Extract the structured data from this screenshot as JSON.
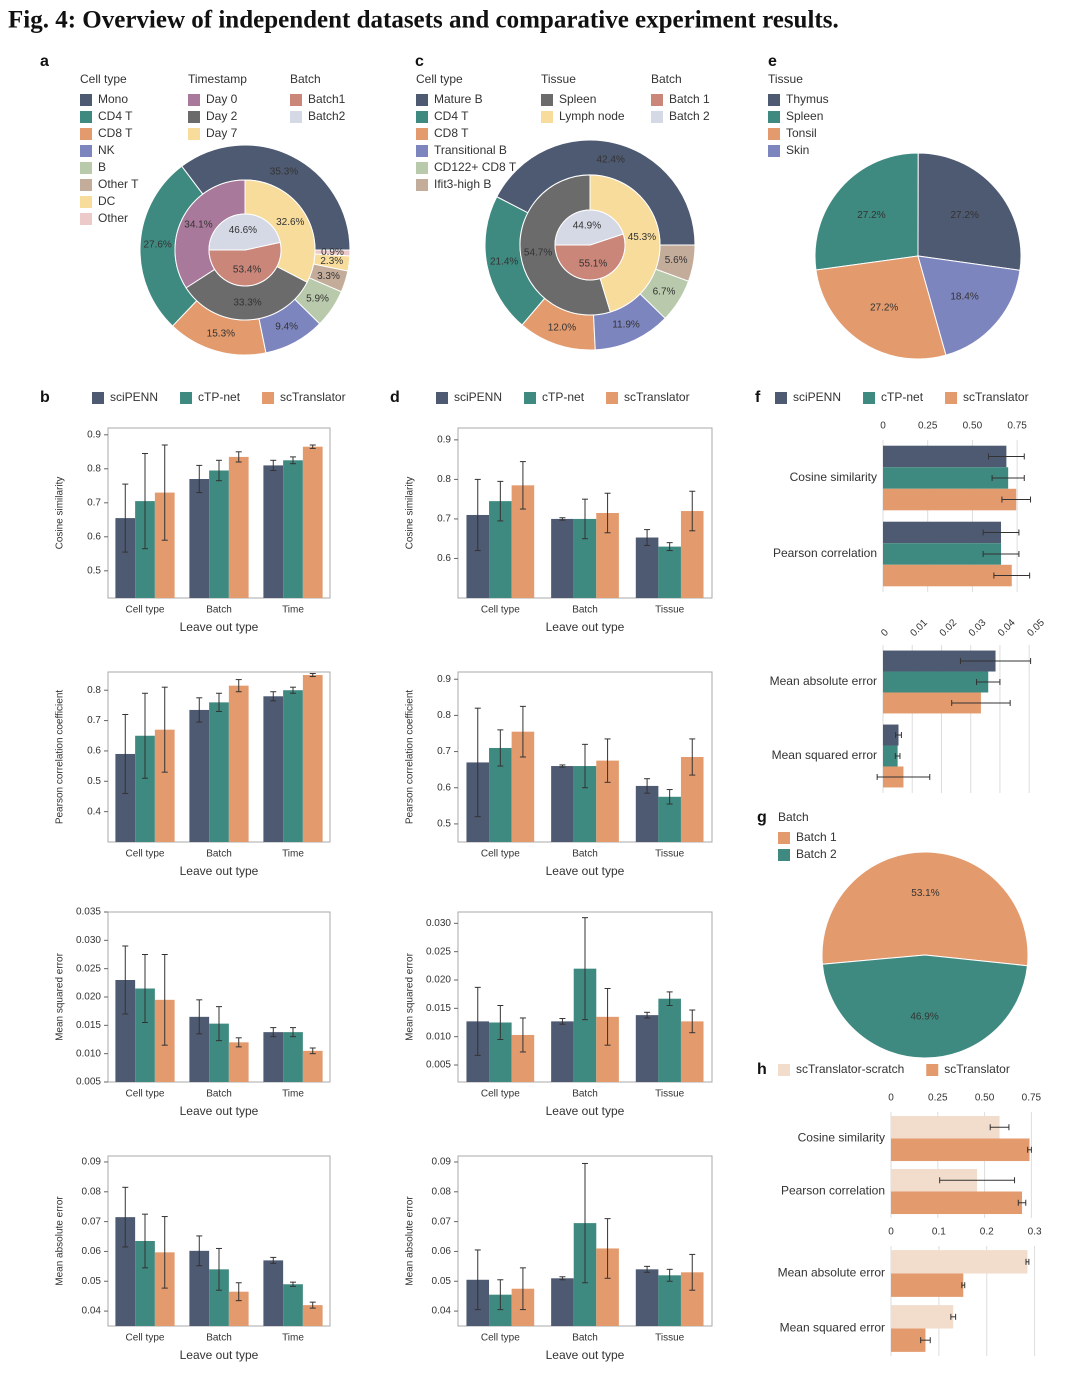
{
  "title": "Fig. 4: Overview of independent datasets and comparative experiment results.",
  "chart_data": [
    {
      "type": "donut",
      "panel": "a",
      "rings": [
        {
          "name": "Cell type",
          "startangle": 0,
          "categories": [
            "Mono",
            "CD4 T",
            "CD8 T",
            "NK",
            "B",
            "Other T",
            "DC",
            "Other"
          ],
          "values": [
            35.3,
            27.6,
            15.3,
            9.4,
            5.9,
            3.3,
            2.3,
            0.9
          ],
          "value_labels": [
            "35.3%",
            "27.6%",
            "15.3%",
            "9.4%",
            "5.9%",
            "3.3%",
            "2.3%",
            "0.9%"
          ],
          "colors": [
            "#4e5a72",
            "#3f8a80",
            "#e39a6d",
            "#7d85be",
            "#b9c9ab",
            "#c4ac9a",
            "#f7dc9c",
            "#eccaca"
          ]
        },
        {
          "name": "Timestamp",
          "startangle": 90,
          "categories": [
            "Day 0",
            "Day 2",
            "Day 7"
          ],
          "values": [
            34.1,
            33.3,
            32.6
          ],
          "value_labels": [
            "34.1%",
            "33.3%",
            "32.6%"
          ],
          "colors": [
            "#a8799a",
            "#6b6b6b",
            "#f7dc9c"
          ]
        },
        {
          "name": "Batch",
          "startangle": 180,
          "categories": [
            "Batch1",
            "Batch2"
          ],
          "values": [
            53.4,
            46.6
          ],
          "value_labels": [
            "53.4%",
            "46.6%"
          ],
          "colors": [
            "#c98679",
            "#d5d8e5"
          ]
        }
      ]
    },
    {
      "type": "donut",
      "panel": "c",
      "rings": [
        {
          "name": "Cell type",
          "startangle": 0,
          "categories": [
            "Mature B",
            "CD4 T",
            "CD8 T",
            "Transitional B",
            "CD122+ CD8 T",
            "Ifit3-high B"
          ],
          "values": [
            42.4,
            21.4,
            12.0,
            11.9,
            6.7,
            5.6
          ],
          "value_labels": [
            "42.4%",
            "21.4%",
            "12.0%",
            "11.9%",
            "6.7%",
            "5.6%"
          ],
          "colors": [
            "#4e5a72",
            "#3f8a80",
            "#e39a6d",
            "#7d85be",
            "#b9c9ab",
            "#c4ac9a"
          ]
        },
        {
          "name": "Tissue",
          "startangle": 90,
          "categories": [
            "Spleen",
            "Lymph node"
          ],
          "values": [
            54.7,
            45.3
          ],
          "value_labels": [
            "54.7%",
            "45.3%"
          ],
          "colors": [
            "#6b6b6b",
            "#f7dc9c"
          ]
        },
        {
          "name": "Batch",
          "startangle": 180,
          "categories": [
            "Batch 1",
            "Batch 2"
          ],
          "values": [
            55.1,
            44.9
          ],
          "value_labels": [
            "55.1%",
            "44.9%"
          ],
          "colors": [
            "#c98679",
            "#d5d8e5"
          ]
        }
      ]
    },
    {
      "type": "pie",
      "panel": "e",
      "legend_title": "Tissue",
      "startangle": -8,
      "categories": [
        "Thymus",
        "Spleen",
        "Tonsil",
        "Skin"
      ],
      "values": [
        27.2,
        27.2,
        27.2,
        18.4
      ],
      "value_labels": [
        "27.2%",
        "27.2%",
        "27.2%",
        "18.4%"
      ],
      "colors": [
        "#4e5a72",
        "#3f8a80",
        "#e39a6d",
        "#7d85be"
      ]
    },
    {
      "type": "bar",
      "panel": "b",
      "categories": [
        "Cell type",
        "Batch",
        "Time"
      ],
      "series": [
        {
          "name": "sciPENN",
          "color": "#4e5a72"
        },
        {
          "name": "cTP-net",
          "color": "#3f8a80"
        },
        {
          "name": "scTranslator",
          "color": "#e39a6d"
        }
      ],
      "subplots": [
        {
          "ylabel": "Cosine similarity",
          "xlabel": "Leave out type",
          "ylim": [
            0.42,
            0.92
          ],
          "yticks": [
            0.5,
            0.6,
            0.7,
            0.8,
            0.9
          ],
          "series_values": [
            [
              0.655,
              0.77,
              0.81
            ],
            [
              0.705,
              0.795,
              0.825
            ],
            [
              0.73,
              0.835,
              0.865
            ]
          ],
          "series_errors": [
            [
              0.1,
              0.04,
              0.015
            ],
            [
              0.14,
              0.03,
              0.01
            ],
            [
              0.14,
              0.015,
              0.005
            ]
          ]
        },
        {
          "ylabel": "Pearson correlation coefficient",
          "xlabel": "Leave out type",
          "ylim": [
            0.3,
            0.86
          ],
          "yticks": [
            0.4,
            0.5,
            0.6,
            0.7,
            0.8
          ],
          "series_values": [
            [
              0.59,
              0.735,
              0.78
            ],
            [
              0.65,
              0.76,
              0.8
            ],
            [
              0.67,
              0.815,
              0.85
            ]
          ],
          "series_errors": [
            [
              0.13,
              0.04,
              0.015
            ],
            [
              0.14,
              0.03,
              0.01
            ],
            [
              0.14,
              0.02,
              0.005
            ]
          ]
        },
        {
          "ylabel": "Mean squared error",
          "xlabel": "Leave out type",
          "ylim": [
            0.005,
            0.035
          ],
          "yticks": [
            0.005,
            {
              "value": 0.01,
              "label": "0.010"
            },
            0.015,
            {
              "value": 0.02,
              "label": "0.020"
            },
            0.025,
            {
              "value": 0.03,
              "label": "0.030"
            },
            0.035
          ],
          "series_values": [
            [
              0.023,
              0.0165,
              0.0138
            ],
            [
              0.0215,
              0.0153,
              0.0138
            ],
            [
              0.0195,
              0.012,
              0.0105
            ]
          ],
          "series_errors": [
            [
              0.006,
              0.003,
              0.0008
            ],
            [
              0.006,
              0.003,
              0.0008
            ],
            [
              0.008,
              0.0008,
              0.0005
            ]
          ]
        },
        {
          "ylabel": "Mean absolute error",
          "xlabel": "Leave out type",
          "ylim": [
            0.035,
            0.092
          ],
          "yticks": [
            0.04,
            0.05,
            0.06,
            0.07,
            0.08,
            0.09
          ],
          "series_values": [
            [
              0.0715,
              0.0602,
              0.057
            ],
            [
              0.0635,
              0.054,
              0.049
            ],
            [
              0.0597,
              0.0465,
              0.042
            ]
          ],
          "series_errors": [
            [
              0.01,
              0.005,
              0.001
            ],
            [
              0.009,
              0.007,
              0.0007
            ],
            [
              0.012,
              0.003,
              0.001
            ]
          ]
        }
      ]
    },
    {
      "type": "bar",
      "panel": "d",
      "categories": [
        "Cell type",
        "Batch",
        "Tissue"
      ],
      "series": [
        {
          "name": "sciPENN",
          "color": "#4e5a72"
        },
        {
          "name": "cTP-net",
          "color": "#3f8a80"
        },
        {
          "name": "scTranslator",
          "color": "#e39a6d"
        }
      ],
      "subplots": [
        {
          "ylabel": "Cosine similarity",
          "xlabel": "Leave out type",
          "ylim": [
            0.5,
            0.93
          ],
          "yticks": [
            0.6,
            0.7,
            0.8,
            0.9
          ],
          "series_values": [
            [
              0.71,
              0.7,
              0.653
            ],
            [
              0.745,
              0.7,
              0.63
            ],
            [
              0.785,
              0.715,
              0.72
            ]
          ],
          "series_errors": [
            [
              0.09,
              0.003,
              0.02
            ],
            [
              0.05,
              0.05,
              0.01
            ],
            [
              0.06,
              0.05,
              0.05
            ]
          ]
        },
        {
          "ylabel": "Pearson correlation coefficient",
          "xlabel": "Leave out type",
          "ylim": [
            0.45,
            0.92
          ],
          "yticks": [
            0.5,
            0.6,
            0.7,
            0.8,
            0.9
          ],
          "series_values": [
            [
              0.67,
              0.66,
              0.605
            ],
            [
              0.71,
              0.66,
              0.575
            ],
            [
              0.755,
              0.675,
              0.685
            ]
          ],
          "series_errors": [
            [
              0.15,
              0.003,
              0.02
            ],
            [
              0.05,
              0.06,
              0.02
            ],
            [
              0.07,
              0.06,
              0.05
            ]
          ]
        },
        {
          "ylabel": "Mean squared error",
          "xlabel": "Leave out type",
          "ylim": [
            0.002,
            0.032
          ],
          "yticks": [
            0.005,
            {
              "value": 0.01,
              "label": "0.010"
            },
            0.015,
            {
              "value": 0.02,
              "label": "0.020"
            },
            0.025,
            {
              "value": 0.03,
              "label": "0.030"
            }
          ],
          "series_values": [
            [
              0.0127,
              0.0127,
              0.0138
            ],
            [
              0.0125,
              0.022,
              0.0167
            ],
            [
              0.0103,
              0.0135,
              0.0127
            ]
          ],
          "series_errors": [
            [
              0.006,
              0.0005,
              0.0005
            ],
            [
              0.003,
              0.009,
              0.0012
            ],
            [
              0.003,
              0.005,
              0.002
            ]
          ]
        },
        {
          "ylabel": "Mean absolute error",
          "xlabel": "Leave out type",
          "ylim": [
            0.035,
            0.092
          ],
          "yticks": [
            0.04,
            0.05,
            0.06,
            0.07,
            0.08,
            0.09
          ],
          "series_values": [
            [
              0.0505,
              0.051,
              0.054
            ],
            [
              0.0455,
              0.0695,
              0.052
            ],
            [
              0.0475,
              0.061,
              0.053
            ]
          ],
          "series_errors": [
            [
              0.01,
              0.0005,
              0.001
            ],
            [
              0.005,
              0.02,
              0.002
            ],
            [
              0.007,
              0.01,
              0.006
            ]
          ]
        }
      ]
    },
    {
      "type": "barh",
      "panel": "f",
      "series": [
        {
          "name": "sciPENN",
          "color": "#4e5a72"
        },
        {
          "name": "cTP-net",
          "color": "#3f8a80"
        },
        {
          "name": "scTranslator",
          "color": "#e39a6d"
        }
      ],
      "subplots": [
        {
          "categories": [
            "Cosine similarity",
            "Pearson correlation"
          ],
          "xlim": [
            0,
            0.85
          ],
          "xticks": [
            0,
            0.25,
            {
              "value": 0.5,
              "label": "0.50"
            },
            0.75
          ],
          "series_values": [
            [
              0.69,
              0.66
            ],
            [
              0.7,
              0.66
            ],
            [
              0.745,
              0.72
            ]
          ],
          "series_errors": [
            [
              0.1,
              0.1
            ],
            [
              0.09,
              0.1
            ],
            [
              0.08,
              0.1
            ]
          ]
        },
        {
          "categories": [
            "Mean absolute error",
            "Mean squared error"
          ],
          "xlim": [
            0,
            0.052
          ],
          "xticks": [
            0,
            0.01,
            0.02,
            0.03,
            0.04,
            0.05
          ],
          "series_values": [
            [
              0.0385,
              0.0053
            ],
            [
              0.036,
              0.005
            ],
            [
              0.0335,
              0.007
            ]
          ],
          "series_errors": [
            [
              0.012,
              0.001
            ],
            [
              0.004,
              0.0008
            ],
            [
              0.01,
              0.009
            ]
          ]
        }
      ]
    },
    {
      "type": "pie",
      "panel": "g",
      "legend_title": "Batch",
      "startangle": -6,
      "categories": [
        "Batch 1",
        "Batch 2"
      ],
      "values": [
        53.1,
        46.9
      ],
      "value_labels": [
        "53.1%",
        "46.9%"
      ],
      "colors": [
        "#e39a6d",
        "#3f8a80"
      ]
    },
    {
      "type": "barh",
      "panel": "h",
      "series": [
        {
          "name": "scTranslator-scratch",
          "color": "#f2dccb"
        },
        {
          "name": "scTranslator",
          "color": "#e39a6d"
        }
      ],
      "subplots": [
        {
          "categories": [
            "Cosine similarity",
            "Pearson correlation"
          ],
          "xlim": [
            0,
            0.78
          ],
          "xticks": [
            0,
            0.25,
            {
              "value": 0.5,
              "label": "0.50"
            },
            0.75
          ],
          "series_values": [
            [
              0.58,
              0.46
            ],
            [
              0.74,
              0.7
            ]
          ],
          "series_errors": [
            [
              0.05,
              0.2
            ],
            [
              0.01,
              0.02
            ]
          ]
        },
        {
          "categories": [
            "Mean absolute error",
            "Mean squared error"
          ],
          "xlim": [
            0,
            0.305
          ],
          "xticks": [
            0,
            0.1,
            0.2,
            0.3
          ],
          "series_values": [
            [
              0.285,
              0.13
            ],
            [
              0.151,
              0.072
            ]
          ],
          "series_errors": [
            [
              0.003,
              0.005
            ],
            [
              0.003,
              0.01
            ]
          ]
        }
      ]
    }
  ]
}
